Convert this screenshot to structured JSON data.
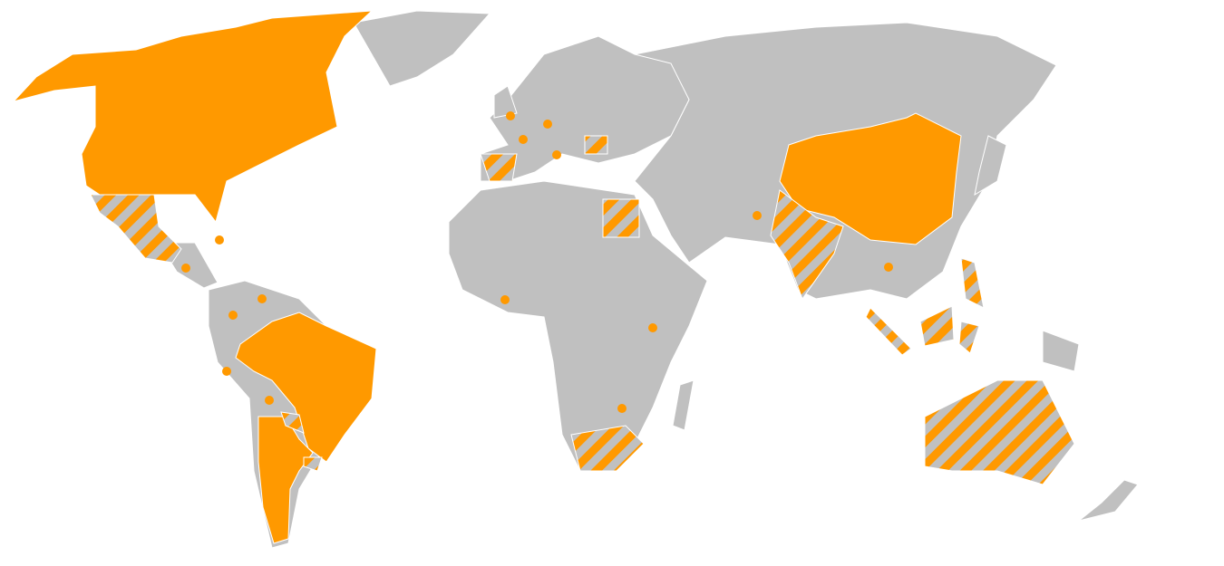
{
  "map": {
    "colors": {
      "background": "#ffffff",
      "land": "#c0c0c0",
      "highlight": "#ff9900",
      "border": "#ffffff"
    },
    "fill_styles": [
      "solid",
      "hatched",
      "dot"
    ]
  }
}
